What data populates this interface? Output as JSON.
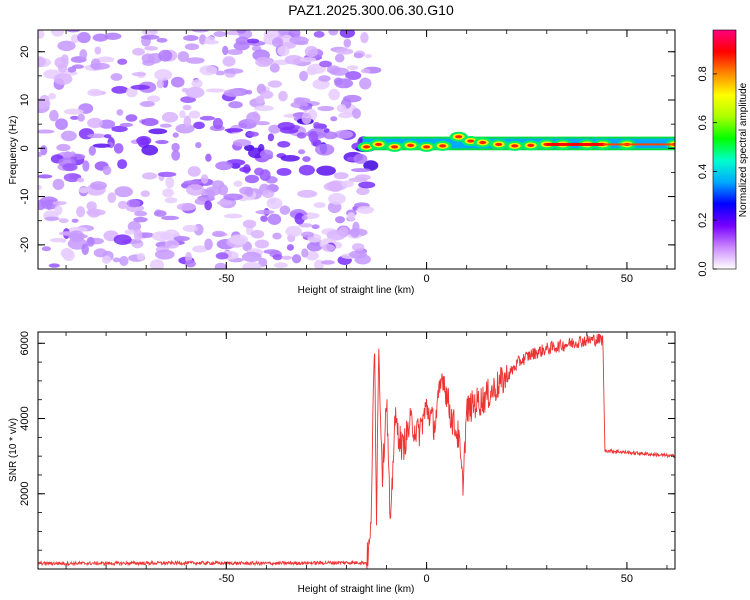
{
  "title": "PAZ1.2025.300.06.30.G10",
  "chart_data": [
    {
      "type": "heatmap",
      "name": "spectrogram",
      "xlabel": "Height of straight line (km)",
      "ylabel": "Frequency (Hz)",
      "xlim": [
        -97,
        62
      ],
      "ylim": [
        -25,
        24.5
      ],
      "xticks": [
        -50,
        0,
        50
      ],
      "yticks": [
        20,
        10,
        0,
        -10,
        -20
      ],
      "colorbar": {
        "label": "Normalized spectral amplitude",
        "range": [
          0,
          0.98
        ],
        "ticks": [
          "0.0",
          "0.2",
          "0.4",
          "0.6",
          "0.8"
        ],
        "colormap": [
          "#ffffff",
          "#cc88ff",
          "#7700ff",
          "#0000ff",
          "#00aaff",
          "#00ffcc",
          "#00ff00",
          "#aaff00",
          "#ffff00",
          "#ff8800",
          "#ff0000",
          "#ff0080"
        ]
      },
      "noise_region_x": [
        -97,
        -16
      ],
      "transition_x": -16,
      "signal_region_x": [
        -16,
        62
      ],
      "signal_frequency_hz": [
        0,
        2
      ],
      "signal_track": [
        {
          "x": -15,
          "f": 0.3
        },
        {
          "x": -12,
          "f": 0.8
        },
        {
          "x": -8,
          "f": 0.3
        },
        {
          "x": -4,
          "f": 0.6
        },
        {
          "x": 0,
          "f": 0.3
        },
        {
          "x": 4,
          "f": 0.5
        },
        {
          "x": 8,
          "f": 2.4
        },
        {
          "x": 11,
          "f": 1.5
        },
        {
          "x": 14,
          "f": 1.2
        },
        {
          "x": 18,
          "f": 0.8
        },
        {
          "x": 22,
          "f": 0.5
        },
        {
          "x": 26,
          "f": 0.6
        },
        {
          "x": 30,
          "f": 0.8
        },
        {
          "x": 34,
          "f": 0.8
        },
        {
          "x": 40,
          "f": 0.8
        },
        {
          "x": 44,
          "f": 0.8
        },
        {
          "x": 50,
          "f": 0.8
        },
        {
          "x": 62,
          "f": 0.8
        }
      ]
    },
    {
      "type": "line",
      "name": "snr",
      "xlabel": "Height of straight line (km)",
      "ylabel": "SNR (10 * v/v)",
      "xlim": [
        -97,
        62
      ],
      "ylim": [
        0,
        6300
      ],
      "xticks": [
        -50,
        0,
        50
      ],
      "yticks": [
        2000,
        4000,
        6000
      ],
      "color": "#ee3333",
      "series": [
        {
          "x": -97,
          "y": 150
        },
        {
          "x": -80,
          "y": 150
        },
        {
          "x": -60,
          "y": 160
        },
        {
          "x": -40,
          "y": 150
        },
        {
          "x": -20,
          "y": 170
        },
        {
          "x": -15,
          "y": 170
        },
        {
          "x": -14,
          "y": 800
        },
        {
          "x": -13,
          "y": 6000
        },
        {
          "x": -12.5,
          "y": 1500
        },
        {
          "x": -12,
          "y": 5900
        },
        {
          "x": -11,
          "y": 2500
        },
        {
          "x": -10,
          "y": 4600
        },
        {
          "x": -9,
          "y": 900
        },
        {
          "x": -8,
          "y": 4000
        },
        {
          "x": -6,
          "y": 3200
        },
        {
          "x": -4,
          "y": 3900
        },
        {
          "x": -2,
          "y": 3600
        },
        {
          "x": 0,
          "y": 4300
        },
        {
          "x": 2,
          "y": 3800
        },
        {
          "x": 4,
          "y": 5200
        },
        {
          "x": 6,
          "y": 4100
        },
        {
          "x": 8,
          "y": 3500
        },
        {
          "x": 9,
          "y": 2200
        },
        {
          "x": 10,
          "y": 4200
        },
        {
          "x": 12,
          "y": 4400
        },
        {
          "x": 14,
          "y": 4500
        },
        {
          "x": 16,
          "y": 4700
        },
        {
          "x": 18,
          "y": 4900
        },
        {
          "x": 20,
          "y": 5100
        },
        {
          "x": 23,
          "y": 5500
        },
        {
          "x": 26,
          "y": 5700
        },
        {
          "x": 30,
          "y": 5850
        },
        {
          "x": 34,
          "y": 5950
        },
        {
          "x": 38,
          "y": 6050
        },
        {
          "x": 42,
          "y": 6100
        },
        {
          "x": 44,
          "y": 6100
        },
        {
          "x": 44.5,
          "y": 3150
        },
        {
          "x": 50,
          "y": 3100
        },
        {
          "x": 56,
          "y": 3050
        },
        {
          "x": 62,
          "y": 3000
        }
      ]
    }
  ]
}
